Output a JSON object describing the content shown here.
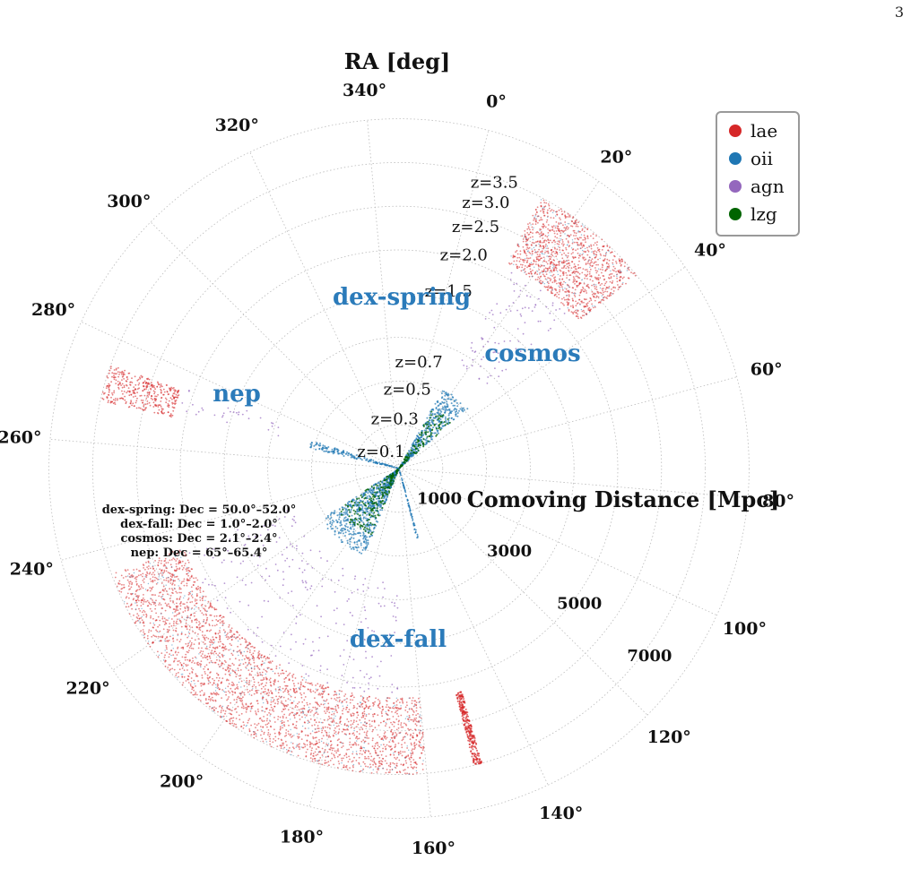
{
  "page_number": "3",
  "chart_data": {
    "type": "scatter",
    "projection": "polar",
    "title": "",
    "angular_axis": {
      "label": "RA [deg]",
      "unit": "deg",
      "ticks": [
        "0°",
        "20°",
        "40°",
        "60°",
        "80°",
        "100°",
        "120°",
        "140°",
        "160°",
        "180°",
        "200°",
        "220°",
        "240°",
        "260°",
        "280°",
        "300°",
        "320°",
        "340°"
      ]
    },
    "radial_axis": {
      "label": "Comoving Distance [Mpc]",
      "range": [
        0,
        8000
      ],
      "ticks": [
        "1000",
        "3000",
        "5000",
        "7000"
      ]
    },
    "redshift_labels": [
      "z=0.1",
      "z=0.3",
      "z=0.5",
      "z=0.7",
      "z=1.5",
      "z=2.0",
      "z=2.5",
      "z=3.0",
      "z=3.5"
    ],
    "grid": true,
    "legend": {
      "placement": "top-right",
      "entries": [
        {
          "name": "lae",
          "color": "#d62728"
        },
        {
          "name": "oii",
          "color": "#1f77b4"
        },
        {
          "name": "agn",
          "color": "#9467bd"
        },
        {
          "name": "lzg",
          "color": "#006400"
        }
      ]
    },
    "fields": [
      {
        "name": "dex-spring",
        "ra_range": [
          160,
          235
        ]
      },
      {
        "name": "dex-fall",
        "ra_range": [
          13,
          36
        ]
      },
      {
        "name": "cosmos",
        "ra_range": [
          149.5,
          151.0
        ]
      },
      {
        "name": "nep",
        "ra_range": [
          268,
          275
        ]
      }
    ],
    "dec_notes": [
      "dex-spring: Dec = 50.0°–52.0°",
      "dex-fall: Dec = 1.0°–2.0°",
      "cosmos: Dec = 2.1°–2.4°",
      "nep: Dec = 65°–65.4°"
    ],
    "series": [
      {
        "name": "lae",
        "color": "#d62728",
        "distance_range": [
          5200,
          7000
        ]
      },
      {
        "name": "oii",
        "color": "#1f77b4",
        "distance_range": [
          0,
          2200
        ]
      },
      {
        "name": "agn",
        "color": "#9467bd",
        "distance_range": [
          2000,
          7000
        ]
      },
      {
        "name": "lzg",
        "color": "#006400",
        "distance_range": [
          0,
          1800
        ]
      }
    ]
  }
}
